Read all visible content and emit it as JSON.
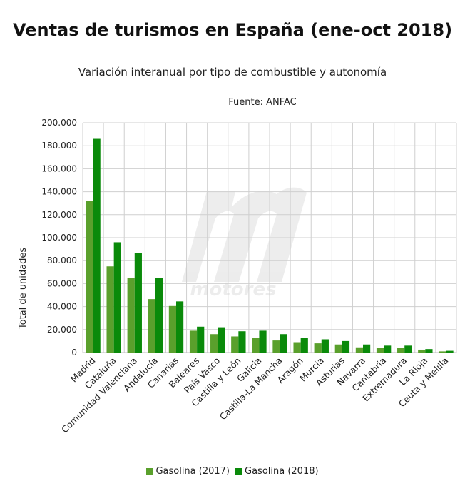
{
  "chart_data": {
    "type": "bar",
    "title": "Ventas de turismos en España (ene-oct 2018)",
    "subtitle": "Variación interanual por tipo de combustible y autonomía",
    "source": "Fuente: ANFAC",
    "ylabel": "Total de unidades",
    "xlabel": "",
    "ylim": [
      0,
      200000
    ],
    "yticks": [
      "0",
      "20.000",
      "40.000",
      "60.000",
      "80.000",
      "100.000",
      "120.000",
      "140.000",
      "160.000",
      "180.000",
      "200.000"
    ],
    "ytick_values": [
      0,
      20000,
      40000,
      60000,
      80000,
      100000,
      120000,
      140000,
      160000,
      180000,
      200000
    ],
    "grid": true,
    "legend_position": "bottom",
    "categories": [
      "Madrid",
      "Cataluña",
      "Comunidad Valenciana",
      "Andalucía",
      "Canarias",
      "Baleares",
      "País Vasco",
      "Castilla y León",
      "Galicia",
      "Castilla-La Mancha",
      "Aragón",
      "Murcia",
      "Asturias",
      "Navarra",
      "Cantabria",
      "Extremadura",
      "La Rioja",
      "Ceuta y Melilla"
    ],
    "series": [
      {
        "name": "Gasolina (2017)",
        "color": "#5aa02c",
        "values": [
          132000,
          75000,
          65000,
          46500,
          40500,
          19000,
          16000,
          14000,
          12500,
          10500,
          9000,
          8000,
          7000,
          4500,
          4000,
          4000,
          2500,
          1000
        ]
      },
      {
        "name": "Gasolina (2018)",
        "color": "#0a8a0a",
        "values": [
          186000,
          96000,
          86500,
          65000,
          44500,
          22500,
          22000,
          18500,
          19000,
          16000,
          12500,
          11500,
          10000,
          7000,
          6000,
          6000,
          3000,
          1500
        ]
      }
    ]
  },
  "watermark": {
    "text": "motores"
  }
}
